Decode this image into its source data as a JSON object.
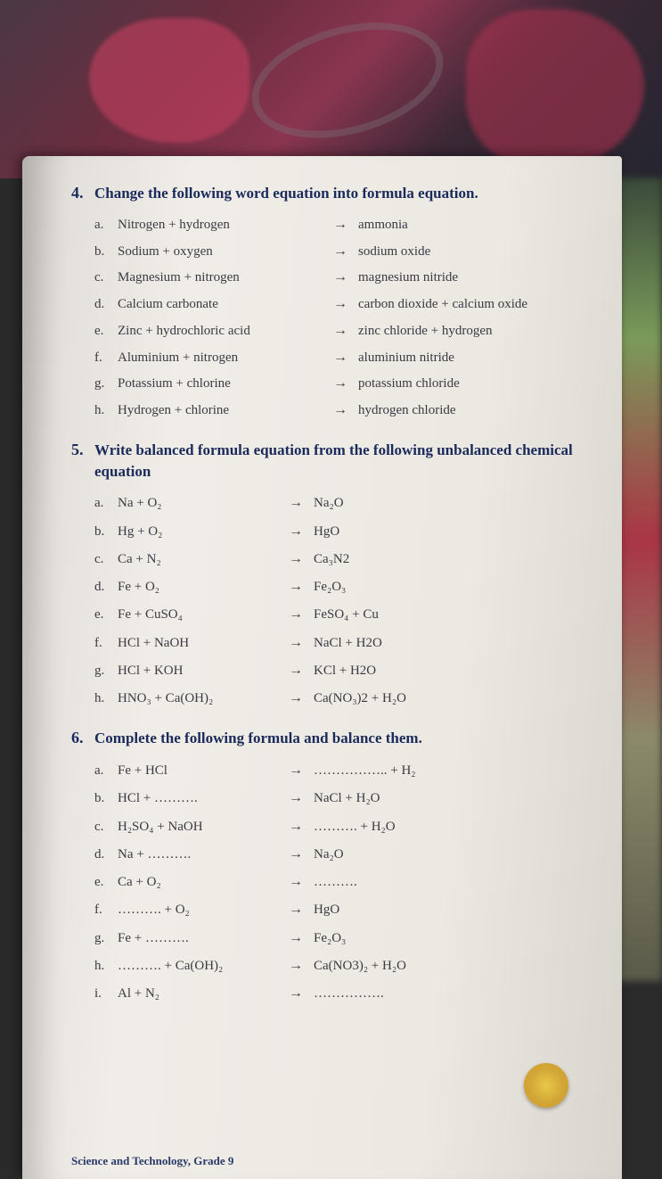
{
  "q4": {
    "number": "4.",
    "title": "Change the following word equation into formula equation.",
    "items": [
      {
        "letter": "a.",
        "left": "Nitrogen + hydrogen",
        "right": "ammonia"
      },
      {
        "letter": "b.",
        "left": "Sodium + oxygen",
        "right": "sodium oxide"
      },
      {
        "letter": "c.",
        "left": "Magnesium + nitrogen",
        "right": "magnesium nitride"
      },
      {
        "letter": "d.",
        "left": "Calcium carbonate",
        "right": "carbon dioxide + calcium oxide"
      },
      {
        "letter": "e.",
        "left": "Zinc + hydrochloric acid",
        "right": "zinc chloride  + hydrogen"
      },
      {
        "letter": "f.",
        "left": "Aluminium + nitrogen",
        "right": "aluminium nitride"
      },
      {
        "letter": "g.",
        "left": "Potassium + chlorine",
        "right": "potassium chloride"
      },
      {
        "letter": "h.",
        "left": "Hydrogen + chlorine",
        "right": "hydrogen chloride"
      }
    ]
  },
  "q5": {
    "number": "5.",
    "title": "Write balanced formula equation from the following unbalanced chemical equation",
    "items": [
      {
        "letter": "a.",
        "left": "Na + O₂",
        "right": "Na₂O"
      },
      {
        "letter": "b.",
        "left": "Hg + O₂",
        "right": "HgO"
      },
      {
        "letter": "c.",
        "left": "Ca + N₂",
        "right": "Ca₃N2"
      },
      {
        "letter": "d.",
        "left": "Fe + O₂",
        "right": "Fe₂O₃"
      },
      {
        "letter": "e.",
        "left": "Fe + CuSO₄",
        "right": "FeSO₄ + Cu"
      },
      {
        "letter": "f.",
        "left": "HCl + NaOH",
        "right": "NaCl + H2O"
      },
      {
        "letter": "g.",
        "left": "HCl + KOH",
        "right": "KCl + H2O"
      },
      {
        "letter": "h.",
        "left": "HNO₃ + Ca(OH)₂",
        "right": "Ca(NO₃)2 + H₂O"
      }
    ]
  },
  "q6": {
    "number": "6.",
    "title": "Complete the following formula and balance them.",
    "items": [
      {
        "letter": "a.",
        "left": "Fe + HCl",
        "right": "…………….. + H₂"
      },
      {
        "letter": "b.",
        "left": "HCl + ……….",
        "right": "NaCl + H₂O"
      },
      {
        "letter": "c.",
        "left": "H₂SO₄ + NaOH",
        "right": "………. + H₂O"
      },
      {
        "letter": "d.",
        "left": "Na + ……….",
        "right": "Na₂O"
      },
      {
        "letter": "e.",
        "left": "Ca + O₂",
        "right": "………."
      },
      {
        "letter": "f.",
        "left": "………. + O₂",
        "right": "HgO"
      },
      {
        "letter": "g.",
        "left": "Fe + ……….",
        "right": "Fe₂O₃"
      },
      {
        "letter": "h.",
        "left": "………. + Ca(OH)₂",
        "right": "Ca(NO3)₂ + H₂O"
      },
      {
        "letter": "i.",
        "left": "Al + N₂",
        "right": "……………."
      }
    ]
  },
  "footer": "Science and Technology, Grade 9",
  "arrow": "→"
}
